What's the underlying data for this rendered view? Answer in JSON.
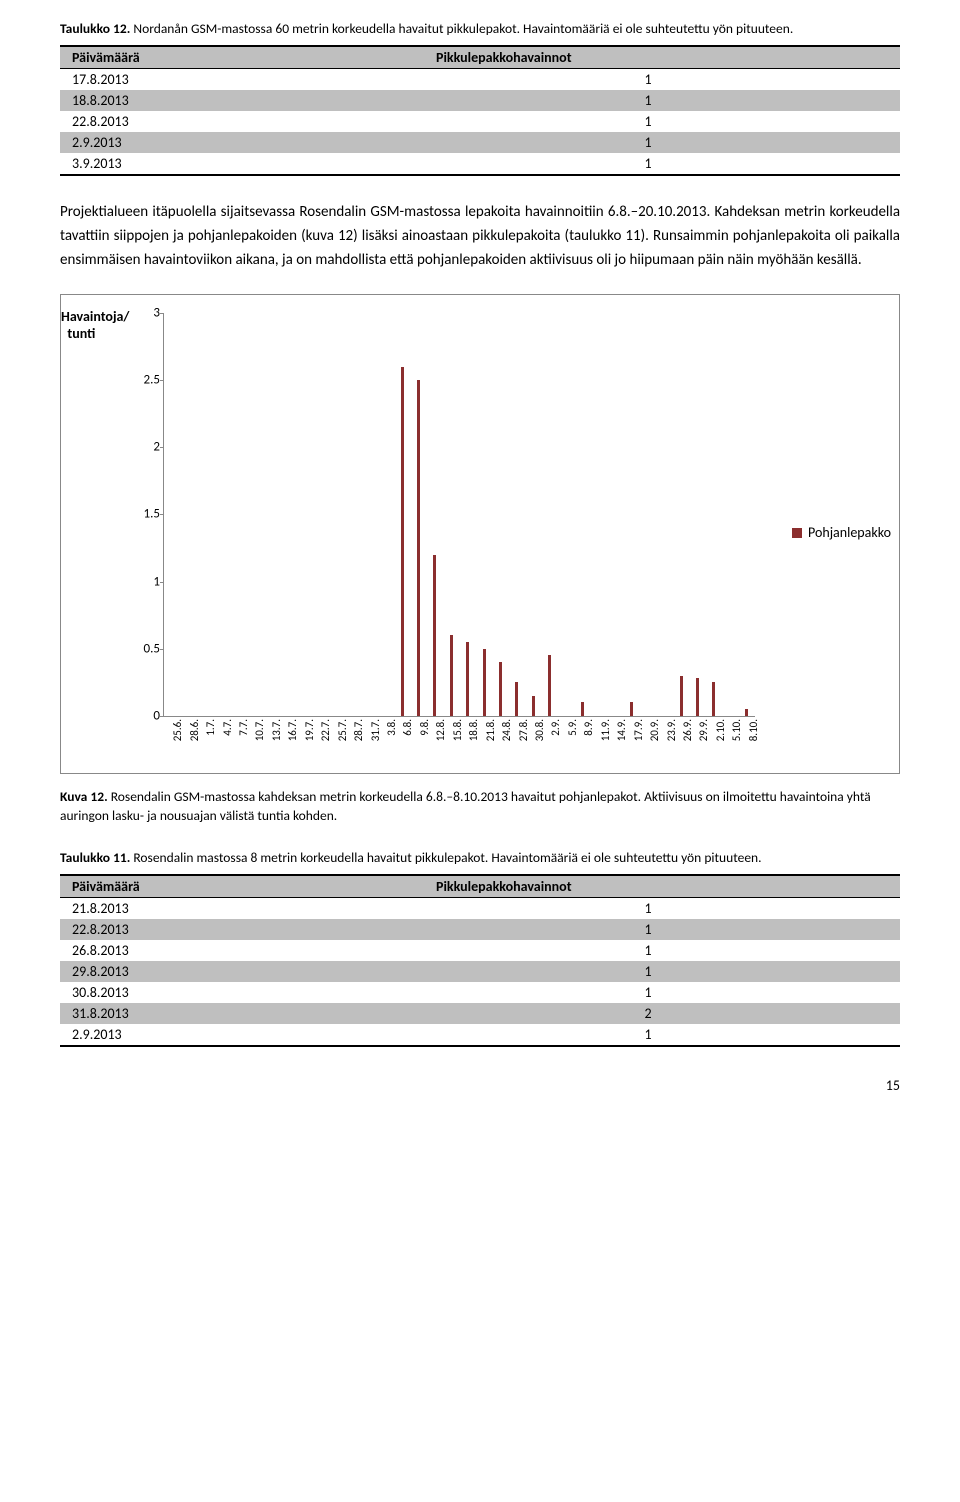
{
  "table12": {
    "caption_bold": "Taulukko 12.",
    "caption_rest": " Nordanån GSM-mastossa 60 metrin korkeudella havaitut pikkulepakot. Havaintomääriä ei ole suhteutettu yön pituuteen.",
    "col1": "Päivämäärä",
    "col2": "Pikkulepakkohavainnot",
    "rows": [
      {
        "date": "17.8.2013",
        "val": "1"
      },
      {
        "date": "18.8.2013",
        "val": "1"
      },
      {
        "date": "22.8.2013",
        "val": "1"
      },
      {
        "date": "2.9.2013",
        "val": "1"
      },
      {
        "date": "3.9.2013",
        "val": "1"
      }
    ]
  },
  "para1": "Projektialueen itäpuolella sijaitsevassa Rosendalin GSM-mastossa lepakoita havainnoitiin 6.8.–20.10.2013. Kahdeksan metrin korkeudella tavattiin siippojen ja pohjanlepakoiden (kuva 12) lisäksi ainoastaan pikkulepakoita (taulukko 11). Runsaimmin pohjanlepakoita oli paikalla ensimmäisen havaintoviikon aikana, ja on mahdollista että pohjanlepakoiden aktiivisuus oli jo hiipumaan päin näin myöhään kesällä.",
  "chart": {
    "ylabel_l1": "Havaintoja/",
    "ylabel_l2": "tunti",
    "ymax": 3,
    "yticks": [
      "3",
      "2.5",
      "2",
      "1.5",
      "1",
      "0.5",
      "0"
    ],
    "legend_label": "Pohjanlepakko",
    "bar_color": "#8b2e2e",
    "box_border": "#888888",
    "categories": [
      "25.6.",
      "28.6.",
      "1.7.",
      "4.7.",
      "7.7.",
      "10.7.",
      "13.7.",
      "16.7.",
      "19.7.",
      "22.7.",
      "25.7.",
      "28.7.",
      "31.7.",
      "3.8.",
      "6.8.",
      "9.8.",
      "12.8.",
      "15.8.",
      "18.8.",
      "21.8.",
      "24.8.",
      "27.8.",
      "30.8.",
      "2.9.",
      "5.9.",
      "8.9.",
      "11.9.",
      "14.9.",
      "17.9.",
      "20.9.",
      "23.9.",
      "26.9.",
      "29.9.",
      "2.10.",
      "5.10.",
      "8.10."
    ],
    "values": [
      0,
      0,
      0,
      0,
      0,
      0,
      0,
      0,
      0,
      0,
      0,
      0,
      0,
      0,
      2.6,
      2.5,
      1.2,
      0.6,
      0.55,
      0.5,
      0.4,
      0.25,
      0.15,
      0.45,
      0,
      0.1,
      0,
      0,
      0.1,
      0,
      0,
      0.3,
      0.28,
      0.25,
      0,
      0.05
    ]
  },
  "fig12": {
    "caption_bold": "Kuva 12.",
    "caption_rest": " Rosendalin GSM-mastossa kahdeksan metrin korkeudella 6.8.–8.10.2013 havaitut pohjanlepakot. Aktiivisuus on ilmoitettu havaintoina yhtä auringon lasku- ja nousuajan välistä tuntia kohden."
  },
  "table11": {
    "caption_bold": "Taulukko 11.",
    "caption_rest": " Rosendalin mastossa 8 metrin korkeudella havaitut pikkulepakot. Havaintomääriä ei ole suhteutettu yön pituuteen.",
    "col1": "Päivämäärä",
    "col2": "Pikkulepakkohavainnot",
    "rows": [
      {
        "date": "21.8.2013",
        "val": "1"
      },
      {
        "date": "22.8.2013",
        "val": "1"
      },
      {
        "date": "26.8.2013",
        "val": "1"
      },
      {
        "date": "29.8.2013",
        "val": "1"
      },
      {
        "date": "30.8.2013",
        "val": "1"
      },
      {
        "date": "31.8.2013",
        "val": "2"
      },
      {
        "date": "2.9.2013",
        "val": "1"
      }
    ]
  },
  "pagenum": "15"
}
